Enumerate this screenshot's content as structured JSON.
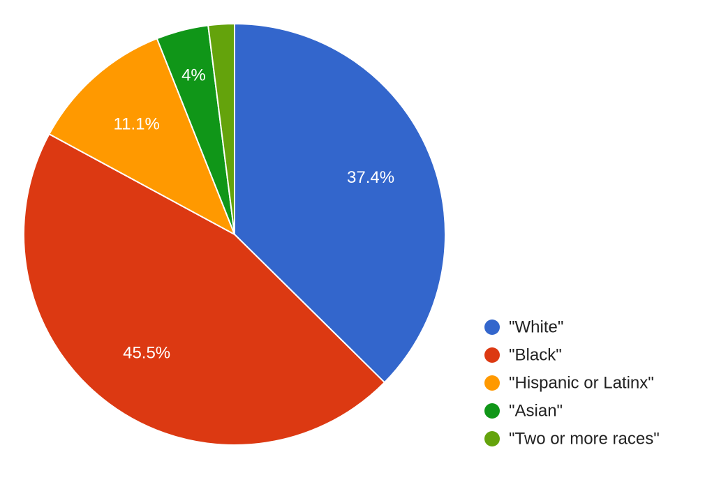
{
  "chart_data": {
    "type": "pie",
    "title": "",
    "start_angle_deg": 0,
    "direction": "clockwise",
    "slices": [
      {
        "label": "\"White\"",
        "value": 37.4,
        "display": "37.4%",
        "color": "#3366cc",
        "show_label": true
      },
      {
        "label": "\"Black\"",
        "value": 45.5,
        "display": "45.5%",
        "color": "#dc3912",
        "show_label": true
      },
      {
        "label": "\"Hispanic or Latinx\"",
        "value": 11.1,
        "display": "11.1%",
        "color": "#ff9900",
        "show_label": true
      },
      {
        "label": "\"Asian\"",
        "value": 4.0,
        "display": "4%",
        "color": "#109618",
        "show_label": true
      },
      {
        "label": "\"Two or more races\"",
        "value": 2.0,
        "display": "2%",
        "color": "#64a30c",
        "show_label": false
      }
    ],
    "legend": {
      "position": "bottom-right"
    }
  }
}
